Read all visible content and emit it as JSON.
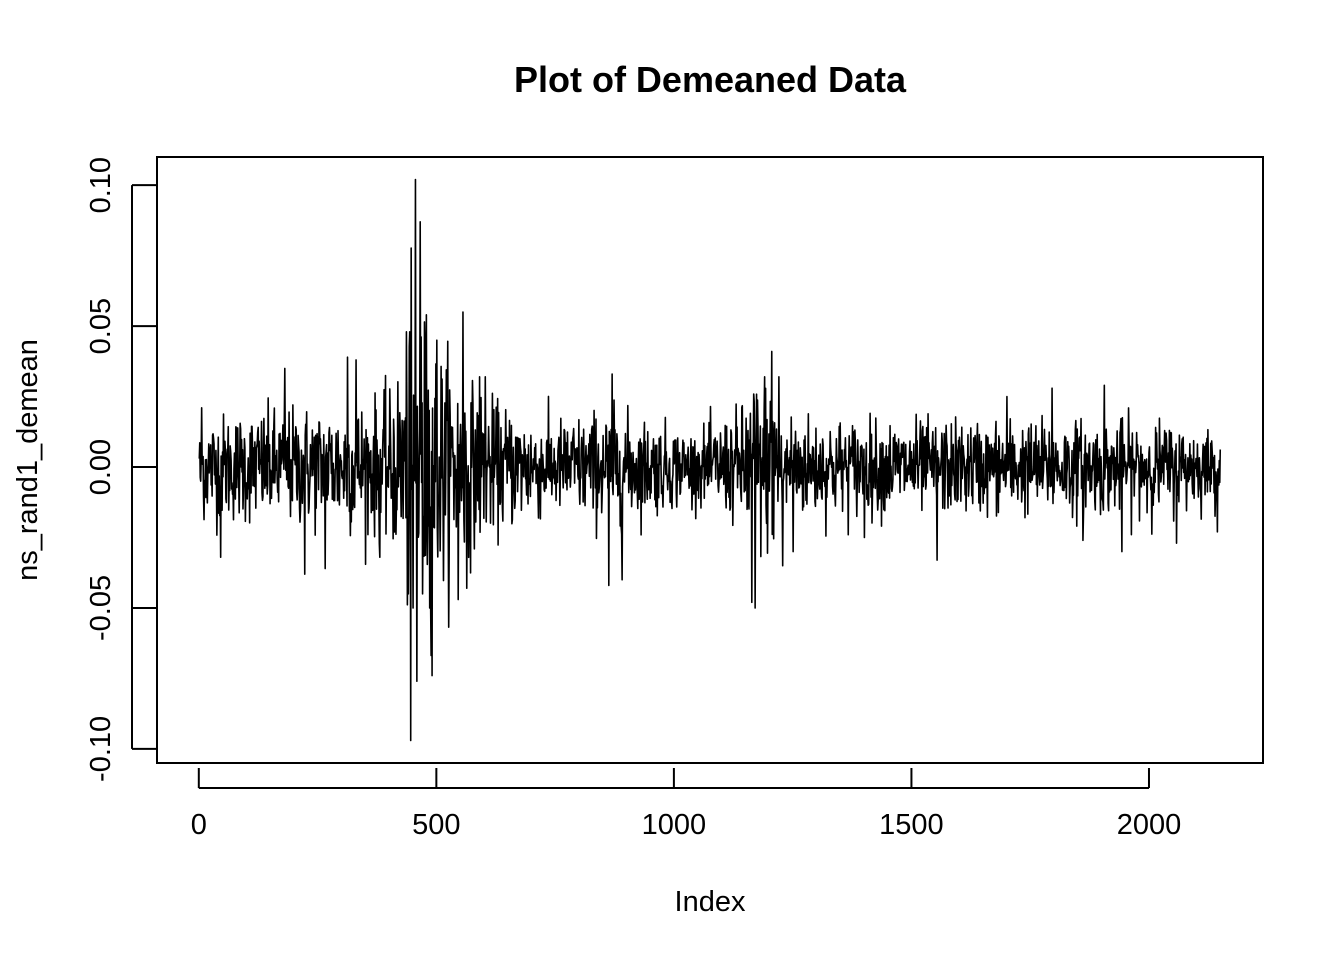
{
  "chart_data": {
    "type": "line",
    "title": "Plot of Demeaned Data",
    "xlabel": "Index",
    "ylabel": "ns_rand1_demean",
    "xlim": [
      -88,
      2240
    ],
    "ylim": [
      -0.105,
      0.11
    ],
    "x_ticks": [
      0,
      500,
      1000,
      1500,
      2000
    ],
    "x_tick_labels": [
      "0",
      "500",
      "1000",
      "1500",
      "2000"
    ],
    "y_ticks": [
      -0.1,
      -0.05,
      0.0,
      0.05,
      0.1
    ],
    "y_tick_labels": [
      "-0.10",
      "-0.05",
      "0.00",
      "0.05",
      "0.10"
    ],
    "grid": false,
    "legend": "none",
    "series_color": "#000000",
    "n_points": 2150,
    "volatility_profile": [
      [
        0,
        0.009
      ],
      [
        180,
        0.01
      ],
      [
        300,
        0.011
      ],
      [
        400,
        0.012
      ],
      [
        430,
        0.02
      ],
      [
        450,
        0.03
      ],
      [
        480,
        0.024
      ],
      [
        560,
        0.015
      ],
      [
        620,
        0.011
      ],
      [
        750,
        0.008
      ],
      [
        860,
        0.01
      ],
      [
        950,
        0.008
      ],
      [
        1050,
        0.006
      ],
      [
        1140,
        0.01
      ],
      [
        1165,
        0.016
      ],
      [
        1210,
        0.014
      ],
      [
        1260,
        0.009
      ],
      [
        1400,
        0.008
      ],
      [
        1800,
        0.008
      ],
      [
        2000,
        0.008
      ],
      [
        2150,
        0.006
      ]
    ],
    "key_points": [
      [
        0,
        0.003
      ],
      [
        3,
        -0.005
      ],
      [
        5,
        0.021
      ],
      [
        9,
        -0.011
      ],
      [
        45,
        -0.032
      ],
      [
        180,
        0.035
      ],
      [
        222,
        -0.038
      ],
      [
        265,
        -0.036
      ],
      [
        312,
        0.039
      ],
      [
        330,
        0.038
      ],
      [
        380,
        -0.032
      ],
      [
        440,
        -0.045
      ],
      [
        443,
        0.048
      ],
      [
        445,
        -0.097
      ],
      [
        450,
        -0.05
      ],
      [
        455,
        0.102
      ],
      [
        458,
        -0.076
      ],
      [
        465,
        0.087
      ],
      [
        470,
        -0.045
      ],
      [
        478,
        0.054
      ],
      [
        485,
        -0.05
      ],
      [
        490,
        -0.074
      ],
      [
        500,
        0.045
      ],
      [
        545,
        -0.047
      ],
      [
        555,
        0.055
      ],
      [
        563,
        -0.043
      ],
      [
        590,
        0.032
      ],
      [
        602,
        0.032
      ],
      [
        862,
        -0.042
      ],
      [
        869,
        0.033
      ],
      [
        890,
        -0.04
      ],
      [
        1163,
        -0.048
      ],
      [
        1170,
        -0.05
      ],
      [
        1190,
        0.032
      ],
      [
        1205,
        0.041
      ],
      [
        1220,
        0.032
      ],
      [
        1228,
        -0.035
      ],
      [
        1250,
        -0.03
      ],
      [
        1400,
        -0.025
      ],
      [
        1553,
        -0.033
      ],
      [
        1700,
        0.025
      ],
      [
        1795,
        0.028
      ],
      [
        1860,
        -0.026
      ],
      [
        1905,
        0.029
      ],
      [
        1942,
        -0.03
      ],
      [
        2057,
        -0.027
      ],
      [
        2143,
        -0.023
      ],
      [
        2150,
        0.021
      ]
    ]
  }
}
